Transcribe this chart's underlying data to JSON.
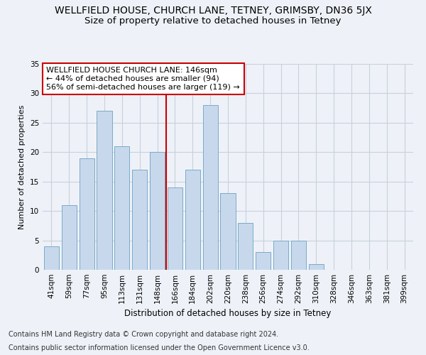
{
  "title": "WELLFIELD HOUSE, CHURCH LANE, TETNEY, GRIMSBY, DN36 5JX",
  "subtitle": "Size of property relative to detached houses in Tetney",
  "xlabel": "Distribution of detached houses by size in Tetney",
  "ylabel": "Number of detached properties",
  "categories": [
    "41sqm",
    "59sqm",
    "77sqm",
    "95sqm",
    "113sqm",
    "131sqm",
    "148sqm",
    "166sqm",
    "184sqm",
    "202sqm",
    "220sqm",
    "238sqm",
    "256sqm",
    "274sqm",
    "292sqm",
    "310sqm",
    "328sqm",
    "346sqm",
    "363sqm",
    "381sqm",
    "399sqm"
  ],
  "values": [
    4,
    11,
    19,
    27,
    21,
    17,
    20,
    14,
    17,
    28,
    13,
    8,
    3,
    5,
    5,
    1,
    0,
    0,
    0,
    0,
    0
  ],
  "bar_color": "#c8d8ec",
  "bar_edge_color": "#7aaac8",
  "ref_line_x": 6.5,
  "ref_line_color": "#cc0000",
  "ylim": [
    0,
    35
  ],
  "yticks": [
    0,
    5,
    10,
    15,
    20,
    25,
    30,
    35
  ],
  "annotation_title": "WELLFIELD HOUSE CHURCH LANE: 146sqm",
  "annotation_line1": "← 44% of detached houses are smaller (94)",
  "annotation_line2": "56% of semi-detached houses are larger (119) →",
  "footnote1": "Contains HM Land Registry data © Crown copyright and database right 2024.",
  "footnote2": "Contains public sector information licensed under the Open Government Licence v3.0.",
  "bg_color": "#eef2f8",
  "plot_bg_color": "#eef2f8",
  "grid_color": "#c8d0dc",
  "title_fontsize": 10,
  "subtitle_fontsize": 9.5,
  "xlabel_fontsize": 8.5,
  "ylabel_fontsize": 8,
  "tick_fontsize": 7.5,
  "annotation_fontsize": 8,
  "footnote_fontsize": 7
}
